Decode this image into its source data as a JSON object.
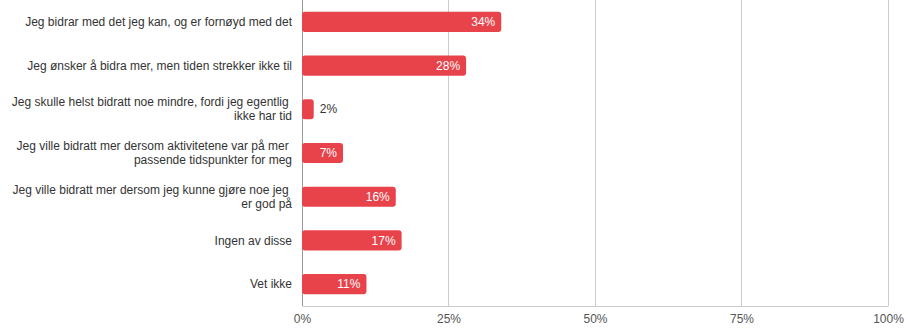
{
  "chart_data": {
    "type": "bar",
    "orientation": "horizontal",
    "categories": [
      "Jeg bidrar med det jeg kan, og er fornøyd med det",
      "Jeg ønsker å bidra mer, men tiden strekker ikke til",
      "Jeg skulle helst bidratt noe mindre, fordi jeg egentlig ikke har tid",
      "Jeg ville bidratt mer dersom aktivitetene var på mer passende tidspunkter for meg",
      "Jeg ville bidratt mer dersom jeg kunne gjøre noe jeg er god på",
      "Ingen av disse",
      "Vet ikke"
    ],
    "values": [
      34,
      28,
      2,
      7,
      16,
      17,
      11
    ],
    "value_labels": [
      "34%",
      "28%",
      "2%",
      "7%",
      "16%",
      "17%",
      "11%"
    ],
    "color": "#e8434a",
    "xlim": [
      0,
      100
    ],
    "xticks": [
      {
        "value": 0,
        "label": "0%"
      },
      {
        "value": 25,
        "label": "25%"
      },
      {
        "value": 50,
        "label": "50%"
      },
      {
        "value": 75,
        "label": "75%"
      },
      {
        "value": 100,
        "label": "100%"
      }
    ],
    "grid": true,
    "data_labels": true
  }
}
